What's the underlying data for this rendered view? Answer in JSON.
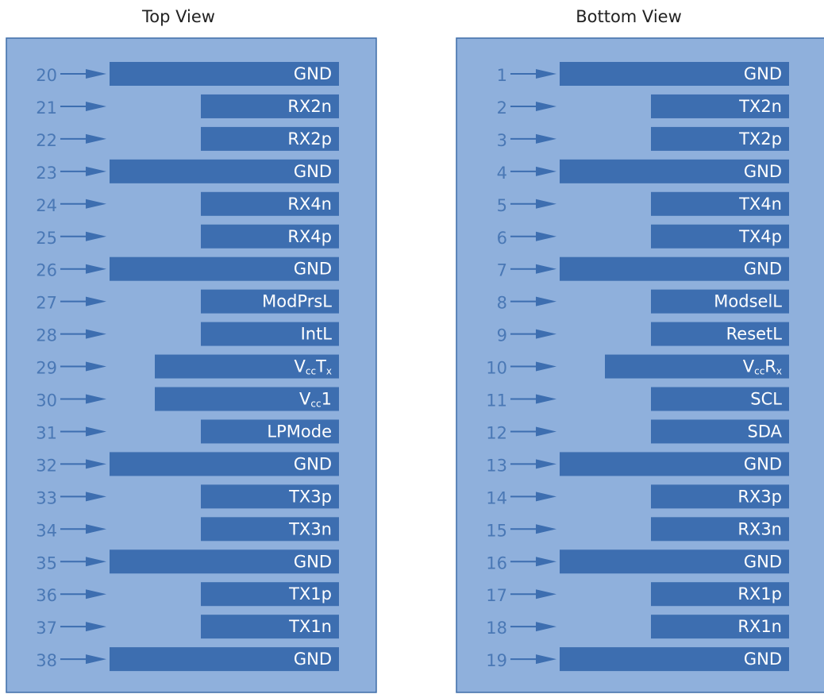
{
  "panels": [
    {
      "title": "Top View",
      "pins": [
        {
          "number": "20",
          "label": "GND"
        },
        {
          "number": "21",
          "label": "RX2n"
        },
        {
          "number": "22",
          "label": "RX2p"
        },
        {
          "number": "23",
          "label": "GND"
        },
        {
          "number": "24",
          "label": "RX4n"
        },
        {
          "number": "25",
          "label": "RX4p"
        },
        {
          "number": "26",
          "label": "GND"
        },
        {
          "number": "27",
          "label": "ModPrsL"
        },
        {
          "number": "28",
          "label": "IntL"
        },
        {
          "number": "29",
          "label": [
            {
              "t": "V"
            },
            {
              "t": "cc",
              "sub": true
            },
            {
              "t": "T"
            },
            {
              "t": "x",
              "sub": true
            }
          ]
        },
        {
          "number": "30",
          "label": [
            {
              "t": "V"
            },
            {
              "t": "cc",
              "sub": true
            },
            {
              "t": "1"
            }
          ]
        },
        {
          "number": "31",
          "label": "LPMode"
        },
        {
          "number": "32",
          "label": "GND"
        },
        {
          "number": "33",
          "label": "TX3p"
        },
        {
          "number": "34",
          "label": "TX3n"
        },
        {
          "number": "35",
          "label": "GND"
        },
        {
          "number": "36",
          "label": "TX1p"
        },
        {
          "number": "37",
          "label": "TX1n"
        },
        {
          "number": "38",
          "label": "GND"
        }
      ]
    },
    {
      "title": "Bottom View",
      "pins": [
        {
          "number": "1",
          "label": "GND"
        },
        {
          "number": "2",
          "label": "TX2n"
        },
        {
          "number": "3",
          "label": "TX2p"
        },
        {
          "number": "4",
          "label": "GND"
        },
        {
          "number": "5",
          "label": "TX4n"
        },
        {
          "number": "6",
          "label": "TX4p"
        },
        {
          "number": "7",
          "label": "GND"
        },
        {
          "number": "8",
          "label": "ModselL"
        },
        {
          "number": "9",
          "label": "ResetL"
        },
        {
          "number": "10",
          "label": [
            {
              "t": "V"
            },
            {
              "t": "cc",
              "sub": true
            },
            {
              "t": "R"
            },
            {
              "t": "x",
              "sub": true
            }
          ]
        },
        {
          "number": "11",
          "label": "SCL"
        },
        {
          "number": "12",
          "label": "SDA"
        },
        {
          "number": "13",
          "label": "GND"
        },
        {
          "number": "14",
          "label": "RX3p"
        },
        {
          "number": "15",
          "label": "RX3n"
        },
        {
          "number": "16",
          "label": "GND"
        },
        {
          "number": "17",
          "label": "RX1p"
        },
        {
          "number": "18",
          "label": "RX1n"
        },
        {
          "number": "19",
          "label": "GND"
        }
      ]
    }
  ]
}
